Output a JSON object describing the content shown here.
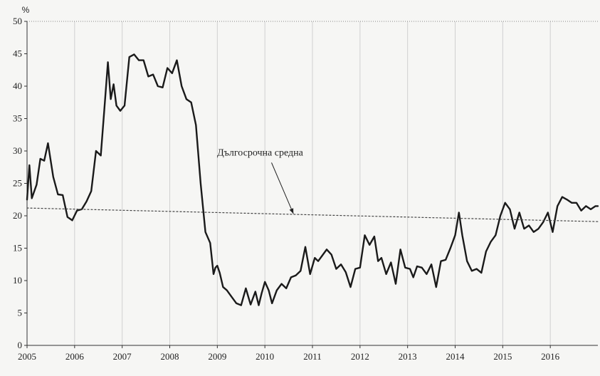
{
  "chart_data": {
    "type": "line",
    "title": "",
    "ylabel": "%",
    "xlabel": "",
    "ylim": [
      0,
      50
    ],
    "xlim": [
      2005,
      2017
    ],
    "y_ticks": [
      0,
      5,
      10,
      15,
      20,
      25,
      30,
      35,
      40,
      45,
      50
    ],
    "x_ticks": [
      2005,
      2006,
      2007,
      2008,
      2009,
      2010,
      2011,
      2012,
      2013,
      2014,
      2015,
      2016
    ],
    "vertical_grid": true,
    "horizontal_grid": false,
    "series": [
      {
        "name": "",
        "color": "#1a1a1a",
        "x": [
          2005.0,
          2005.05,
          2005.1,
          2005.2,
          2005.28,
          2005.36,
          2005.44,
          2005.55,
          2005.65,
          2005.75,
          2005.85,
          2005.95,
          2006.05,
          2006.15,
          2006.25,
          2006.35,
          2006.45,
          2006.55,
          2006.62,
          2006.7,
          2006.76,
          2006.82,
          2006.88,
          2006.96,
          2007.05,
          2007.15,
          2007.25,
          2007.35,
          2007.45,
          2007.55,
          2007.65,
          2007.75,
          2007.85,
          2007.95,
          2008.05,
          2008.15,
          2008.25,
          2008.35,
          2008.45,
          2008.55,
          2008.65,
          2008.75,
          2008.85,
          2008.92,
          2008.96,
          2009.0,
          2009.05,
          2009.12,
          2009.2,
          2009.3,
          2009.4,
          2009.5,
          2009.6,
          2009.7,
          2009.8,
          2009.87,
          2009.93,
          2010.0,
          2010.08,
          2010.15,
          2010.25,
          2010.35,
          2010.45,
          2010.55,
          2010.65,
          2010.75,
          2010.85,
          2010.95,
          2011.05,
          2011.12,
          2011.2,
          2011.3,
          2011.4,
          2011.5,
          2011.6,
          2011.7,
          2011.8,
          2011.9,
          2012.0,
          2012.1,
          2012.2,
          2012.3,
          2012.38,
          2012.45,
          2012.55,
          2012.65,
          2012.75,
          2012.85,
          2012.95,
          2013.05,
          2013.12,
          2013.2,
          2013.3,
          2013.4,
          2013.5,
          2013.6,
          2013.7,
          2013.8,
          2013.9,
          2014.0,
          2014.08,
          2014.15,
          2014.25,
          2014.35,
          2014.45,
          2014.55,
          2014.65,
          2014.75,
          2014.85,
          2014.95,
          2015.05,
          2015.15,
          2015.25,
          2015.35,
          2015.45,
          2015.55,
          2015.65,
          2015.75,
          2015.85,
          2015.95,
          2016.05,
          2016.15,
          2016.25,
          2016.35,
          2016.45,
          2016.55,
          2016.65,
          2016.75,
          2016.85,
          2016.95,
          2017.0
        ],
        "y": [
          22.5,
          27.8,
          22.7,
          24.8,
          28.8,
          28.5,
          31.2,
          26.0,
          23.3,
          23.2,
          19.8,
          19.3,
          20.8,
          21.0,
          22.2,
          23.8,
          30.0,
          29.3,
          36.0,
          43.7,
          38.0,
          40.3,
          37.0,
          36.2,
          37.0,
          44.5,
          44.9,
          44.0,
          44.0,
          41.5,
          41.8,
          40.0,
          39.8,
          42.8,
          42.0,
          44.0,
          40.0,
          38.0,
          37.5,
          34.0,
          25.0,
          17.5,
          15.8,
          11.0,
          12.0,
          12.3,
          11.2,
          9.0,
          8.5,
          7.5,
          6.5,
          6.2,
          8.8,
          6.3,
          8.3,
          6.2,
          8.0,
          9.8,
          8.5,
          6.5,
          8.5,
          9.5,
          8.8,
          10.5,
          10.8,
          11.5,
          15.2,
          11.0,
          13.5,
          13.0,
          13.8,
          14.8,
          14.0,
          11.8,
          12.5,
          11.3,
          9.0,
          11.8,
          12.0,
          17.0,
          15.5,
          16.8,
          13.0,
          13.5,
          11.0,
          12.8,
          9.5,
          14.8,
          12.0,
          11.8,
          10.5,
          12.2,
          12.0,
          11.0,
          12.5,
          9.0,
          13.0,
          13.2,
          15.0,
          17.0,
          20.5,
          17.0,
          13.0,
          11.5,
          11.8,
          11.2,
          14.5,
          16.0,
          17.0,
          20.0,
          22.0,
          21.0,
          18.0,
          20.5,
          18.0,
          18.5,
          17.5,
          18.0,
          19.0,
          20.5,
          17.5,
          21.5,
          22.9,
          22.5,
          22.0,
          22.0,
          20.8,
          21.5,
          21.0,
          21.5,
          21.5
        ]
      },
      {
        "name": "Дългосрочна средна",
        "color": "#444444",
        "style": "dotted",
        "x": [
          2005.0,
          2017.0
        ],
        "y": [
          21.2,
          19.1
        ]
      }
    ],
    "annotations": [
      {
        "text": "Дългосрочна средна",
        "x": 2009.9,
        "y": 29.3,
        "arrow_to": {
          "x": 2010.6,
          "y": 20.3
        }
      }
    ]
  }
}
